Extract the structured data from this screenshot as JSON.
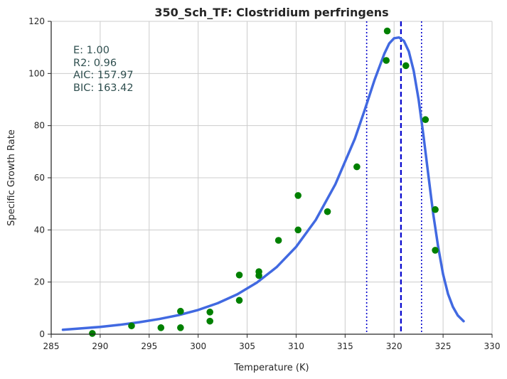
{
  "chart_data": {
    "type": "scatter",
    "title": "350_Sch_TF: Clostridium perfringens",
    "xlabel": "Temperature (K)",
    "ylabel": "Specific Growth Rate",
    "xlim": [
      285,
      330
    ],
    "ylim": [
      0,
      120
    ],
    "xticks": [
      "285",
      "290",
      "295",
      "300",
      "305",
      "310",
      "315",
      "320",
      "325",
      "330"
    ],
    "yticks": [
      "0",
      "20",
      "40",
      "60",
      "80",
      "100",
      "120"
    ],
    "grid": true,
    "annotations": [
      "E:  1.00",
      "R2:  0.96",
      "AIC: 157.97",
      "BIC: 163.42"
    ],
    "observed_points": {
      "color": "#008000",
      "x": [
        289.2,
        293.2,
        296.2,
        298.2,
        298.2,
        301.2,
        301.2,
        304.2,
        304.2,
        306.2,
        306.2,
        308.2,
        310.2,
        310.2,
        313.2,
        316.2,
        319.2,
        319.3,
        321.2,
        323.2,
        324.2,
        324.2
      ],
      "y": [
        0.3,
        3.2,
        2.5,
        2.5,
        8.8,
        5.0,
        8.5,
        13.0,
        22.7,
        24.0,
        22.5,
        36.0,
        40.0,
        53.2,
        47.0,
        64.2,
        105.0,
        116.3,
        103.0,
        82.3,
        47.8,
        32.2
      ]
    },
    "fitted_curve": {
      "color": "#4169e1",
      "x": [
        286.2,
        288,
        290,
        292,
        294,
        296,
        298,
        300,
        302,
        304,
        306,
        308,
        310,
        312,
        314,
        316,
        317,
        318,
        319,
        319.5,
        320,
        320.5,
        321,
        321.5,
        322,
        322.5,
        323,
        323.5,
        324,
        324.5,
        325,
        325.5,
        326,
        326.5,
        327.1
      ],
      "y": [
        1.7,
        2.2,
        2.8,
        3.6,
        4.6,
        5.8,
        7.3,
        9.3,
        11.9,
        15.3,
        19.8,
        25.7,
        33.5,
        43.8,
        57.5,
        75.0,
        86.0,
        97.5,
        107.5,
        111.5,
        113.5,
        113.8,
        112.5,
        108.5,
        101.0,
        90.0,
        76.0,
        61.0,
        46.0,
        33.5,
        23.0,
        15.5,
        10.5,
        7.2,
        5.0
      ]
    },
    "vertical_lines": [
      {
        "x": 317.2,
        "style": "dotted",
        "color": "#0000cd"
      },
      {
        "x": 320.7,
        "style": "dashed",
        "color": "#0000cd"
      },
      {
        "x": 322.8,
        "style": "dotted",
        "color": "#0000cd"
      }
    ]
  }
}
